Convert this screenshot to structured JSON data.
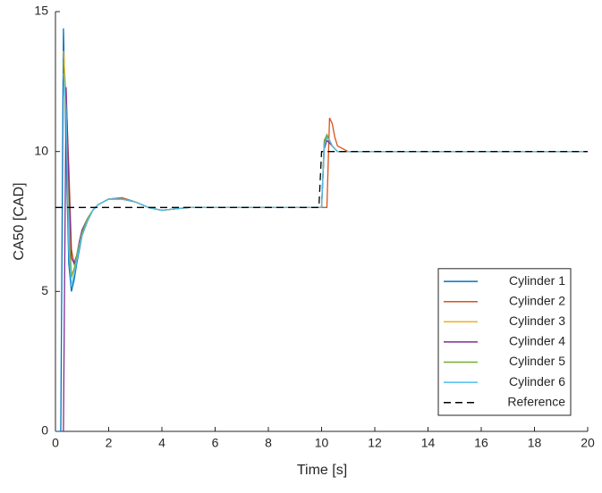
{
  "chart_data": {
    "type": "line",
    "xlabel": "Time [s]",
    "ylabel": "CA50 [CAD]",
    "x": [
      0,
      0.2,
      0.3,
      0.4,
      0.5,
      0.6,
      0.7,
      0.8,
      0.9,
      1.0,
      1.2,
      1.4,
      1.6,
      1.8,
      2.0,
      2.5,
      3.0,
      3.5,
      4.0,
      4.5,
      5,
      6,
      7,
      8,
      9,
      9.9,
      10.0,
      10.1,
      10.2,
      10.3,
      10.4,
      10.5,
      10.6,
      10.8,
      11,
      12,
      13,
      14,
      15,
      16,
      17,
      18,
      20
    ],
    "series": [
      {
        "name": "Cylinder 1",
        "color": "#0072BD",
        "values": [
          0,
          0,
          14.4,
          10,
          6,
          5,
          5.4,
          6,
          6.5,
          7,
          7.5,
          7.9,
          8.1,
          8.2,
          8.3,
          8.35,
          8.2,
          8.0,
          7.9,
          7.95,
          8,
          8,
          8,
          8,
          8,
          8,
          8,
          10.3,
          10.6,
          10.4,
          10.2,
          10.1,
          10,
          10,
          10,
          10,
          10,
          10,
          10,
          10,
          10,
          10,
          10
        ]
      },
      {
        "name": "Cylinder 2",
        "color": "#D95319",
        "values": [
          null,
          null,
          13,
          12,
          9.5,
          6.5,
          6,
          6.2,
          6.6,
          7,
          7.5,
          7.9,
          8.1,
          8.2,
          8.3,
          8.35,
          8.2,
          8.0,
          7.9,
          7.95,
          8,
          8,
          8,
          8,
          8,
          8,
          8,
          8,
          8,
          11.2,
          11,
          10.5,
          10.2,
          10.1,
          10,
          10,
          10,
          10,
          10,
          10,
          10,
          10,
          10
        ]
      },
      {
        "name": "Cylinder 3",
        "color": "#EDB120",
        "values": [
          null,
          null,
          13.6,
          12,
          8,
          5.6,
          5.8,
          6.2,
          6.7,
          7.1,
          7.6,
          7.9,
          8.1,
          8.2,
          8.3,
          8.3,
          8.2,
          8.0,
          7.9,
          7.95,
          8,
          8,
          8,
          8,
          8,
          8,
          8,
          10.2,
          10.5,
          10.4,
          10.2,
          10.1,
          10,
          10,
          10,
          10,
          10,
          10,
          10,
          10,
          10,
          10,
          10
        ]
      },
      {
        "name": "Cylinder 4",
        "color": "#7E2F8E",
        "values": [
          null,
          null,
          0,
          12.3,
          9,
          6.2,
          6,
          6.3,
          6.8,
          7.2,
          7.6,
          7.9,
          8.1,
          8.2,
          8.3,
          8.3,
          8.2,
          8.0,
          7.9,
          7.95,
          8,
          8,
          8,
          8,
          8,
          8,
          8,
          10.1,
          10.4,
          10.3,
          10.2,
          10.1,
          10,
          10,
          10,
          10,
          10,
          10,
          10,
          10,
          10,
          10,
          10
        ]
      },
      {
        "name": "Cylinder 5",
        "color": "#77AC30",
        "values": [
          null,
          null,
          13.2,
          11,
          7,
          5.5,
          5.8,
          6.3,
          6.7,
          7.1,
          7.6,
          7.9,
          8.1,
          8.2,
          8.3,
          8.3,
          8.2,
          8.0,
          7.9,
          7.95,
          8,
          8,
          8,
          8,
          8,
          8,
          8,
          10.4,
          10.6,
          10.4,
          10.2,
          10.1,
          10,
          10,
          10,
          10,
          10,
          10,
          10,
          10,
          10,
          10,
          10
        ]
      },
      {
        "name": "Cylinder 6",
        "color": "#4DBEEE",
        "values": [
          null,
          null,
          12.8,
          11.5,
          6.5,
          5.2,
          5.6,
          6.1,
          6.6,
          7,
          7.5,
          7.9,
          8.1,
          8.2,
          8.3,
          8.3,
          8.2,
          8.0,
          7.9,
          7.95,
          8,
          8,
          8,
          8,
          8,
          8,
          8,
          10.2,
          10.5,
          10.4,
          10.2,
          10.1,
          10,
          10,
          10,
          10,
          10,
          10,
          10,
          10,
          10,
          10,
          10
        ]
      },
      {
        "name": "Reference",
        "color": "#000000",
        "style": "dashed",
        "values": [
          8,
          8,
          8,
          8,
          8,
          8,
          8,
          8,
          8,
          8,
          8,
          8,
          8,
          8,
          8,
          8,
          8,
          8,
          8,
          8,
          8,
          8,
          8,
          8,
          8,
          8,
          10,
          10,
          10,
          10,
          10,
          10,
          10,
          10,
          10,
          10,
          10,
          10,
          10,
          10,
          10,
          10,
          10
        ]
      }
    ],
    "xlim": [
      0,
      20
    ],
    "xticks": [
      0,
      2,
      4,
      6,
      8,
      10,
      12,
      14,
      16,
      18,
      20
    ],
    "ylim": [
      0,
      15
    ],
    "yticks": [
      0,
      5,
      10,
      15
    ],
    "legend": "lower right"
  }
}
